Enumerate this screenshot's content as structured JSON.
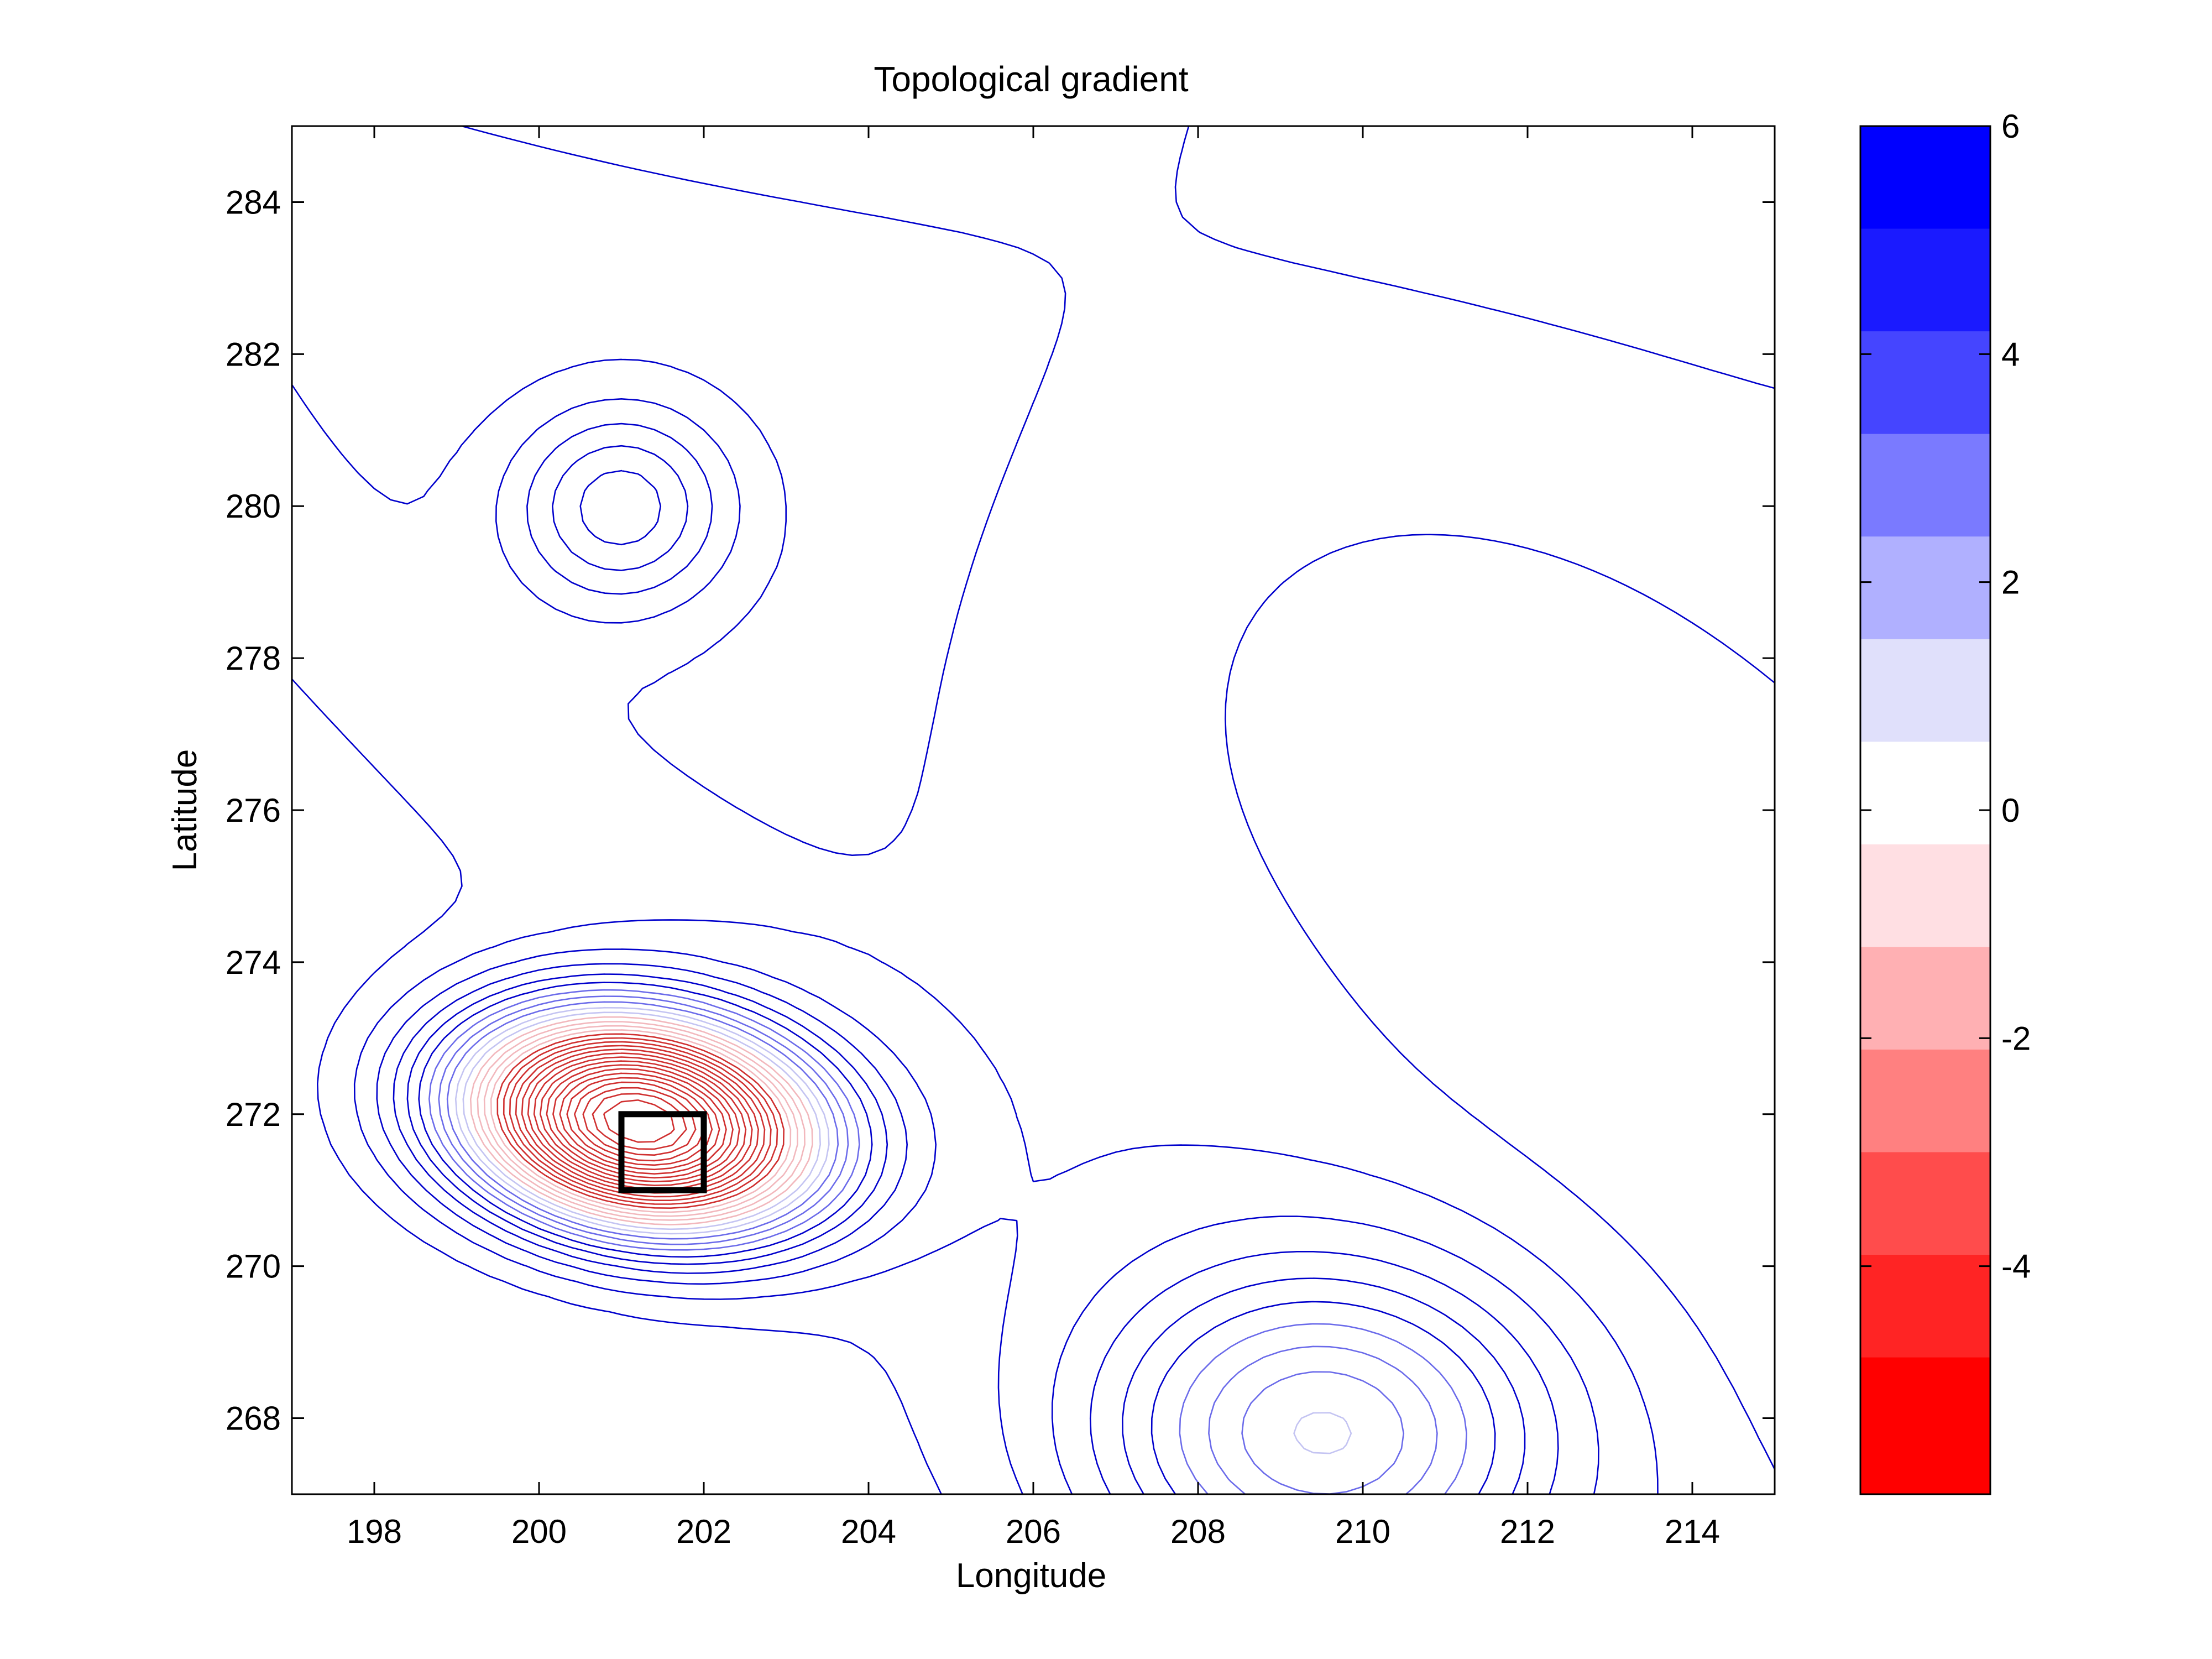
{
  "chart_data": {
    "type": "contour",
    "title": "Topological gradient",
    "xlabel": "Longitude",
    "ylabel": "Latitude",
    "xlim": [
      197,
      215
    ],
    "ylim": [
      267,
      285
    ],
    "xticks": [
      198,
      200,
      202,
      204,
      206,
      208,
      210,
      212,
      214
    ],
    "yticks": [
      268,
      270,
      272,
      274,
      276,
      278,
      280,
      282,
      284
    ],
    "grid": false,
    "colormap": "blue-white-red",
    "colorbar": {
      "position": "right",
      "lim": [
        -6,
        6
      ],
      "ticks": [
        6,
        4,
        2,
        0,
        -2,
        -4
      ],
      "bands": [
        {
          "from": 5.1,
          "to": 6.0,
          "color": "#0000ff"
        },
        {
          "from": 4.2,
          "to": 5.1,
          "color": "#1a1aff"
        },
        {
          "from": 3.3,
          "to": 4.2,
          "color": "#4545ff"
        },
        {
          "from": 2.4,
          "to": 3.3,
          "color": "#7a7aff"
        },
        {
          "from": 1.5,
          "to": 2.4,
          "color": "#b0b0ff"
        },
        {
          "from": 0.6,
          "to": 1.5,
          "color": "#e0e0fb"
        },
        {
          "from": -0.3,
          "to": 0.6,
          "color": "#ffffff"
        },
        {
          "from": -1.2,
          "to": -0.3,
          "color": "#ffdfe3"
        },
        {
          "from": -2.1,
          "to": -1.2,
          "color": "#ffb0b3"
        },
        {
          "from": -3.0,
          "to": -2.1,
          "color": "#ff8080"
        },
        {
          "from": -3.9,
          "to": -3.0,
          "color": "#ff4c4c"
        },
        {
          "from": -4.8,
          "to": -3.9,
          "color": "#ff2424"
        },
        {
          "from": -6.0,
          "to": -4.8,
          "color": "#ff0000"
        }
      ]
    },
    "field": {
      "background_level": 3.0,
      "features": [
        {
          "kind": "minimum",
          "x": 201.2,
          "y": 271.9,
          "amplitude": -9.5
        },
        {
          "kind": "local_maximum",
          "x": 201.0,
          "y": 280.0,
          "amplitude": 4.5
        },
        {
          "kind": "low_region",
          "x": 209.5,
          "y": 267.8,
          "amplitude": -2.5
        }
      ]
    },
    "annotations": [
      {
        "type": "rectangle",
        "x": [
          201,
          202
        ],
        "y": [
          271,
          272
        ],
        "color": "#000000"
      }
    ]
  }
}
